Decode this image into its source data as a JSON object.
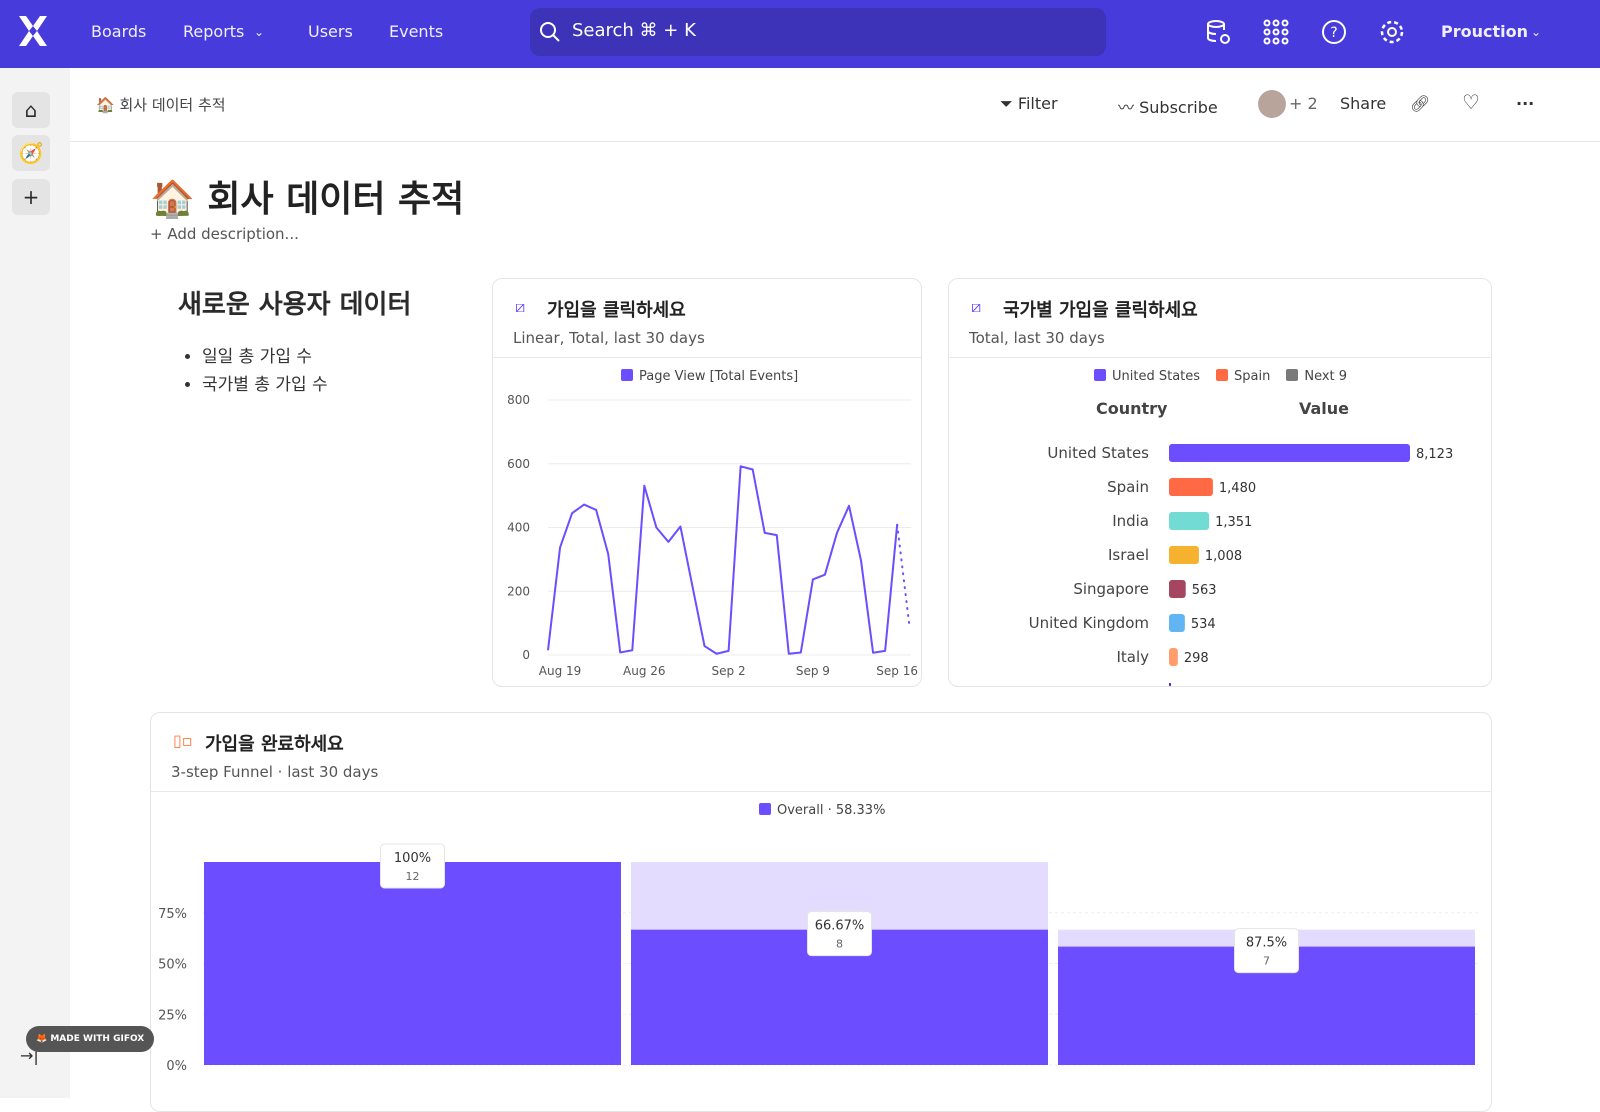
{
  "nav": {
    "items": [
      "Boards",
      "Reports",
      "Users",
      "Events"
    ],
    "search": "Search  ⌘ + K",
    "workspace": "Prouction"
  },
  "colors": {
    "brand": "#473bdb",
    "series": "#6c4dff"
  },
  "subheader": {
    "breadcrumb": "회사 데이터 추적",
    "filter": "Filter",
    "subscribe": "Subscribe",
    "avatars_extra": "+ 2",
    "share": "Share"
  },
  "page": {
    "emoji": "🏠",
    "title": "회사 데이터 추적",
    "add_description": "+ Add description..."
  },
  "text_card": {
    "heading": "새로운 사용자 데이터",
    "bullets": [
      "일일 총 가입 수",
      "국가별 총 가입 수"
    ]
  },
  "badge": "MADE WITH GIFOX",
  "chart_data": [
    {
      "type": "line",
      "title": "가입을 클릭하세요",
      "subtitle": "Linear, Total, last 30 days",
      "legend": "Page View [Total Events]",
      "ylim": [
        0,
        800
      ],
      "yticks": [
        "0",
        "200",
        "400",
        "600",
        "800"
      ],
      "xticks": [
        "Aug 19",
        "Aug 26",
        "Sep 2",
        "Sep 9",
        "Sep 16"
      ],
      "x": [
        "Aug 18",
        "Aug 19",
        "Aug 20",
        "Aug 21",
        "Aug 22",
        "Aug 23",
        "Aug 24",
        "Aug 25",
        "Aug 26",
        "Aug 27",
        "Aug 28",
        "Aug 29",
        "Aug 30",
        "Aug 31",
        "Sep 1",
        "Sep 2",
        "Sep 3",
        "Sep 4",
        "Sep 5",
        "Sep 6",
        "Sep 7",
        "Sep 8",
        "Sep 9",
        "Sep 10",
        "Sep 11",
        "Sep 12",
        "Sep 13",
        "Sep 14",
        "Sep 15",
        "Sep 16"
      ],
      "values": [
        15,
        337,
        445,
        472,
        455,
        317,
        8,
        15,
        531,
        400,
        355,
        403,
        215,
        28,
        4,
        13,
        592,
        582,
        383,
        376,
        4,
        8,
        237,
        252,
        383,
        468,
        296,
        7,
        13,
        409
      ],
      "partial": {
        "x": "Sep 17",
        "value": 97
      }
    },
    {
      "type": "bar",
      "orientation": "horizontal",
      "title": "국가별 가입을 클릭하세요",
      "subtitle": "Total, last 30 days",
      "legend": [
        {
          "name": "United States",
          "color": "#6c4dff"
        },
        {
          "name": "Spain",
          "color": "#ff6a45"
        },
        {
          "name": "Next 9",
          "color": "#7a7a7a"
        }
      ],
      "headers": [
        "Country",
        "Value"
      ],
      "categories": [
        "United States",
        "Spain",
        "India",
        "Israel",
        "Singapore",
        "United Kingdom",
        "Italy"
      ],
      "values": [
        8123,
        1480,
        1351,
        1008,
        563,
        534,
        298
      ],
      "labels": [
        "8,123",
        "1,480",
        "1,351",
        "1,008",
        "563",
        "534",
        "298"
      ],
      "colors": [
        "#6c4dff",
        "#ff6a45",
        "#72dcd4",
        "#f6b12f",
        "#a6455f",
        "#62b5f3",
        "#ff9d6c"
      ]
    },
    {
      "type": "bar",
      "title": "가입을 완료하세요",
      "subtitle": "3-step Funnel · last 30 days",
      "legend": "Overall · 58.33%",
      "ylim": [
        0,
        100
      ],
      "yticks": [
        "0%",
        "25%",
        "50%",
        "75%"
      ],
      "steps": [
        {
          "conversion": "100%",
          "count": "12",
          "overall": 100
        },
        {
          "conversion": "66.67%",
          "count": "8",
          "overall": 66.67
        },
        {
          "conversion": "87.5%",
          "count": "7",
          "overall": 58.33
        }
      ]
    }
  ]
}
